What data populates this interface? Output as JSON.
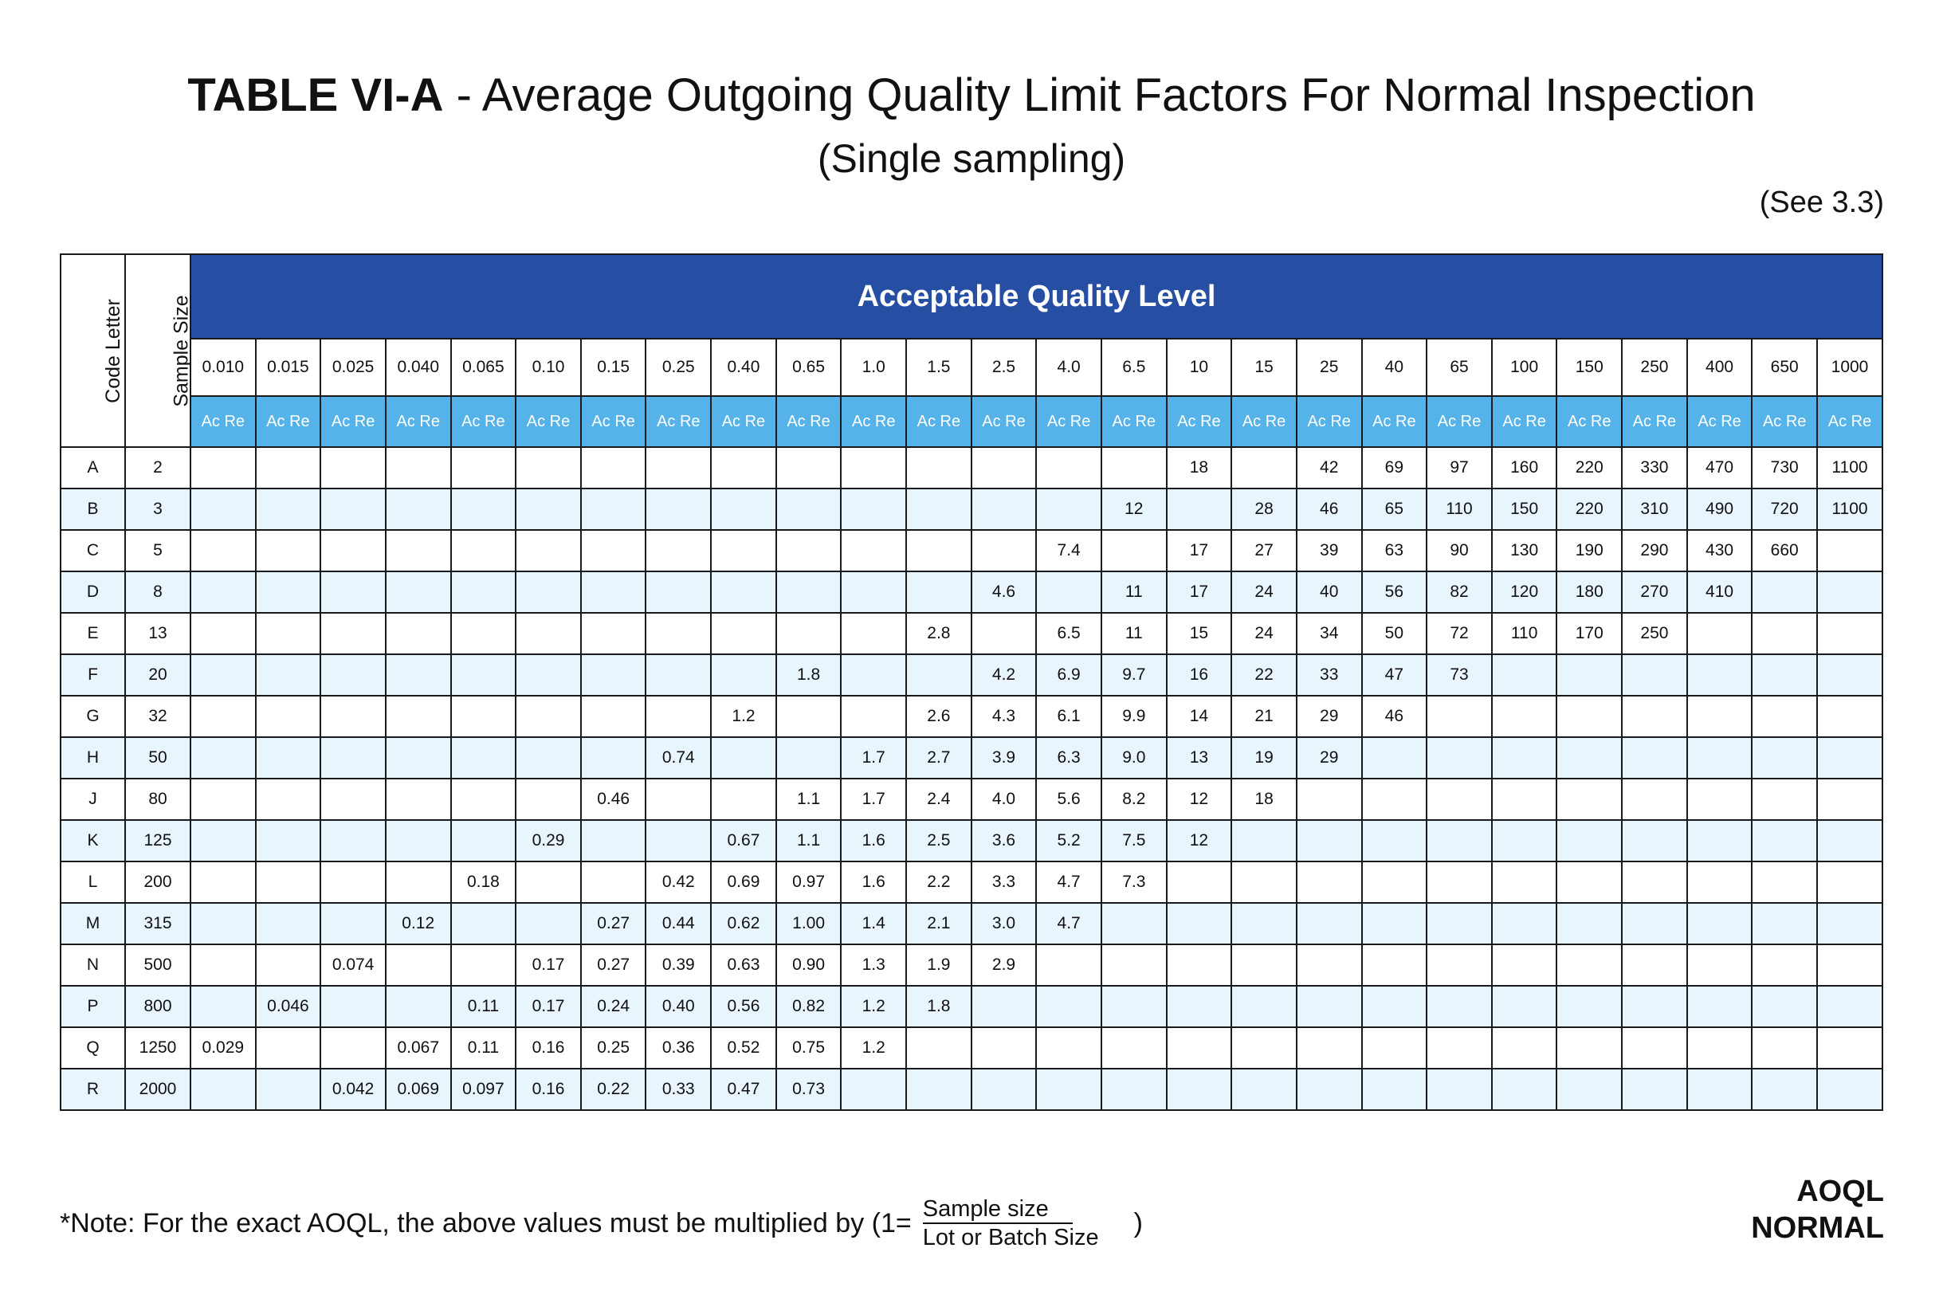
{
  "title": {
    "bold": "TABLE VI-A",
    "rest": " - Average Outgoing Quality Limit Factors For Normal Inspection",
    "subtitle": "(Single sampling)",
    "see_ref": "(See 3.3)"
  },
  "table": {
    "code_letter_header": "Code Letter",
    "sample_size_header": "Sample Size",
    "aql_header": "Acceptable Quality Level",
    "acre_label": "Ac Re",
    "aql_levels": [
      "0.010",
      "0.015",
      "0.025",
      "0.040",
      "0.065",
      "0.10",
      "0.15",
      "0.25",
      "0.40",
      "0.65",
      "1.0",
      "1.5",
      "2.5",
      "4.0",
      "6.5",
      "10",
      "15",
      "25",
      "40",
      "65",
      "100",
      "150",
      "250",
      "400",
      "650",
      "1000"
    ],
    "rows": [
      {
        "code": "A",
        "size": "2",
        "values": [
          "",
          "",
          "",
          "",
          "",
          "",
          "",
          "",
          "",
          "",
          "",
          "",
          "",
          "",
          "",
          "18",
          "",
          "42",
          "69",
          "97",
          "160",
          "220",
          "330",
          "470",
          "730",
          "1100"
        ]
      },
      {
        "code": "B",
        "size": "3",
        "values": [
          "",
          "",
          "",
          "",
          "",
          "",
          "",
          "",
          "",
          "",
          "",
          "",
          "",
          "",
          "12",
          "",
          "28",
          "46",
          "65",
          "110",
          "150",
          "220",
          "310",
          "490",
          "720",
          "1100"
        ]
      },
      {
        "code": "C",
        "size": "5",
        "values": [
          "",
          "",
          "",
          "",
          "",
          "",
          "",
          "",
          "",
          "",
          "",
          "",
          "",
          "7.4",
          "",
          "17",
          "27",
          "39",
          "63",
          "90",
          "130",
          "190",
          "290",
          "430",
          "660",
          ""
        ]
      },
      {
        "code": "D",
        "size": "8",
        "values": [
          "",
          "",
          "",
          "",
          "",
          "",
          "",
          "",
          "",
          "",
          "",
          "",
          "4.6",
          "",
          "11",
          "17",
          "24",
          "40",
          "56",
          "82",
          "120",
          "180",
          "270",
          "410",
          "",
          ""
        ]
      },
      {
        "code": "E",
        "size": "13",
        "values": [
          "",
          "",
          "",
          "",
          "",
          "",
          "",
          "",
          "",
          "",
          "",
          "2.8",
          "",
          "6.5",
          "11",
          "15",
          "24",
          "34",
          "50",
          "72",
          "110",
          "170",
          "250",
          "",
          "",
          ""
        ]
      },
      {
        "code": "F",
        "size": "20",
        "values": [
          "",
          "",
          "",
          "",
          "",
          "",
          "",
          "",
          "",
          "1.8",
          "",
          "",
          "4.2",
          "6.9",
          "9.7",
          "16",
          "22",
          "33",
          "47",
          "73",
          "",
          "",
          "",
          "",
          "",
          ""
        ]
      },
      {
        "code": "G",
        "size": "32",
        "values": [
          "",
          "",
          "",
          "",
          "",
          "",
          "",
          "",
          "1.2",
          "",
          "",
          "2.6",
          "4.3",
          "6.1",
          "9.9",
          "14",
          "21",
          "29",
          "46",
          "",
          "",
          "",
          "",
          "",
          "",
          ""
        ]
      },
      {
        "code": "H",
        "size": "50",
        "values": [
          "",
          "",
          "",
          "",
          "",
          "",
          "",
          "0.74",
          "",
          "",
          "1.7",
          "2.7",
          "3.9",
          "6.3",
          "9.0",
          "13",
          "19",
          "29",
          "",
          "",
          "",
          "",
          "",
          "",
          "",
          ""
        ]
      },
      {
        "code": "J",
        "size": "80",
        "values": [
          "",
          "",
          "",
          "",
          "",
          "",
          "0.46",
          "",
          "",
          "1.1",
          "1.7",
          "2.4",
          "4.0",
          "5.6",
          "8.2",
          "12",
          "18",
          "",
          "",
          "",
          "",
          "",
          "",
          "",
          "",
          ""
        ]
      },
      {
        "code": "K",
        "size": "125",
        "values": [
          "",
          "",
          "",
          "",
          "",
          "0.29",
          "",
          "",
          "0.67",
          "1.1",
          "1.6",
          "2.5",
          "3.6",
          "5.2",
          "7.5",
          "12",
          "",
          "",
          "",
          "",
          "",
          "",
          "",
          "",
          "",
          ""
        ]
      },
      {
        "code": "L",
        "size": "200",
        "values": [
          "",
          "",
          "",
          "",
          "0.18",
          "",
          "",
          "0.42",
          "0.69",
          "0.97",
          "1.6",
          "2.2",
          "3.3",
          "4.7",
          "7.3",
          "",
          "",
          "",
          "",
          "",
          "",
          "",
          "",
          "",
          "",
          ""
        ]
      },
      {
        "code": "M",
        "size": "315",
        "values": [
          "",
          "",
          "",
          "0.12",
          "",
          "",
          "0.27",
          "0.44",
          "0.62",
          "1.00",
          "1.4",
          "2.1",
          "3.0",
          "4.7",
          "",
          "",
          "",
          "",
          "",
          "",
          "",
          "",
          "",
          "",
          "",
          ""
        ]
      },
      {
        "code": "N",
        "size": "500",
        "values": [
          "",
          "",
          "0.074",
          "",
          "",
          "0.17",
          "0.27",
          "0.39",
          "0.63",
          "0.90",
          "1.3",
          "1.9",
          "2.9",
          "",
          "",
          "",
          "",
          "",
          "",
          "",
          "",
          "",
          "",
          "",
          "",
          ""
        ]
      },
      {
        "code": "P",
        "size": "800",
        "values": [
          "",
          "0.046",
          "",
          "",
          "0.11",
          "0.17",
          "0.24",
          "0.40",
          "0.56",
          "0.82",
          "1.2",
          "1.8",
          "",
          "",
          "",
          "",
          "",
          "",
          "",
          "",
          "",
          "",
          "",
          "",
          "",
          ""
        ]
      },
      {
        "code": "Q",
        "size": "1250",
        "values": [
          "0.029",
          "",
          "",
          "0.067",
          "0.11",
          "0.16",
          "0.25",
          "0.36",
          "0.52",
          "0.75",
          "1.2",
          "",
          "",
          "",
          "",
          "",
          "",
          "",
          "",
          "",
          "",
          "",
          "",
          "",
          "",
          ""
        ]
      },
      {
        "code": "R",
        "size": "2000",
        "values": [
          "",
          "",
          "0.042",
          "0.069",
          "0.097",
          "0.16",
          "0.22",
          "0.33",
          "0.47",
          "0.73",
          "",
          "",
          "",
          "",
          "",
          "",
          "",
          "",
          "",
          "",
          "",
          "",
          "",
          "",
          "",
          ""
        ]
      }
    ]
  },
  "note": {
    "text": "*Note: For the exact AOQL, the above values must be multiplied by (1=",
    "numerator": "Sample size",
    "denominator": "Lot or Batch Size",
    "close": ")"
  },
  "corner": {
    "line1": "AOQL",
    "line2": "NORMAL"
  },
  "colors": {
    "header_blue": "#264ea3",
    "acre_blue": "#55b3ea",
    "alt_row": "#e9f5fd"
  }
}
